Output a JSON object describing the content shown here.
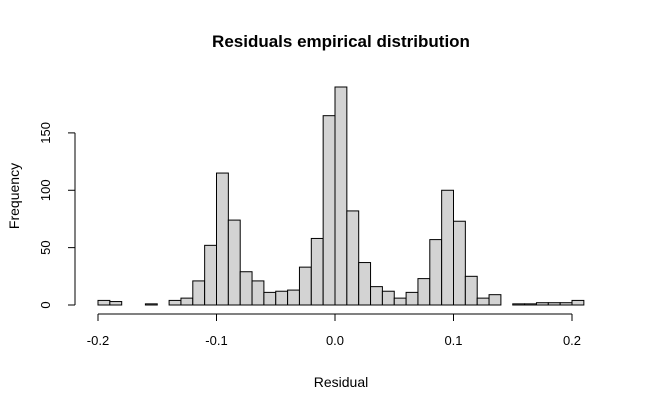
{
  "chart_data": {
    "type": "bar",
    "title": "Residuals empirical distribution",
    "xlabel": "Residual",
    "ylabel": "Frequency",
    "xlim": [
      -0.21,
      0.21
    ],
    "ylim": [
      0,
      190
    ],
    "grid": false,
    "bin_width": 0.01,
    "x_ticks": [
      -0.2,
      -0.1,
      0.0,
      0.1,
      0.2
    ],
    "x_tick_labels": [
      "-0.2",
      "-0.1",
      "0.0",
      "0.1",
      "0.2"
    ],
    "y_ticks": [
      0,
      50,
      100,
      150
    ],
    "y_tick_labels": [
      "0",
      "50",
      "100",
      "150"
    ],
    "bins_left": [
      -0.2,
      -0.19,
      -0.18,
      -0.17,
      -0.16,
      -0.15,
      -0.14,
      -0.13,
      -0.12,
      -0.11,
      -0.1,
      -0.09,
      -0.08,
      -0.07,
      -0.06,
      -0.05,
      -0.04,
      -0.03,
      -0.02,
      -0.01,
      0.0,
      0.01,
      0.02,
      0.03,
      0.04,
      0.05,
      0.06,
      0.07,
      0.08,
      0.09,
      0.1,
      0.11,
      0.12,
      0.13,
      0.14,
      0.15,
      0.16,
      0.17,
      0.18,
      0.19,
      0.2
    ],
    "values": [
      4,
      3,
      0,
      0,
      1,
      0,
      4,
      6,
      21,
      52,
      115,
      74,
      29,
      21,
      11,
      12,
      13,
      33,
      58,
      165,
      190,
      82,
      37,
      16,
      12,
      6,
      11,
      23,
      57,
      100,
      73,
      25,
      6,
      9,
      0,
      1,
      1,
      2,
      2,
      2,
      4
    ]
  }
}
